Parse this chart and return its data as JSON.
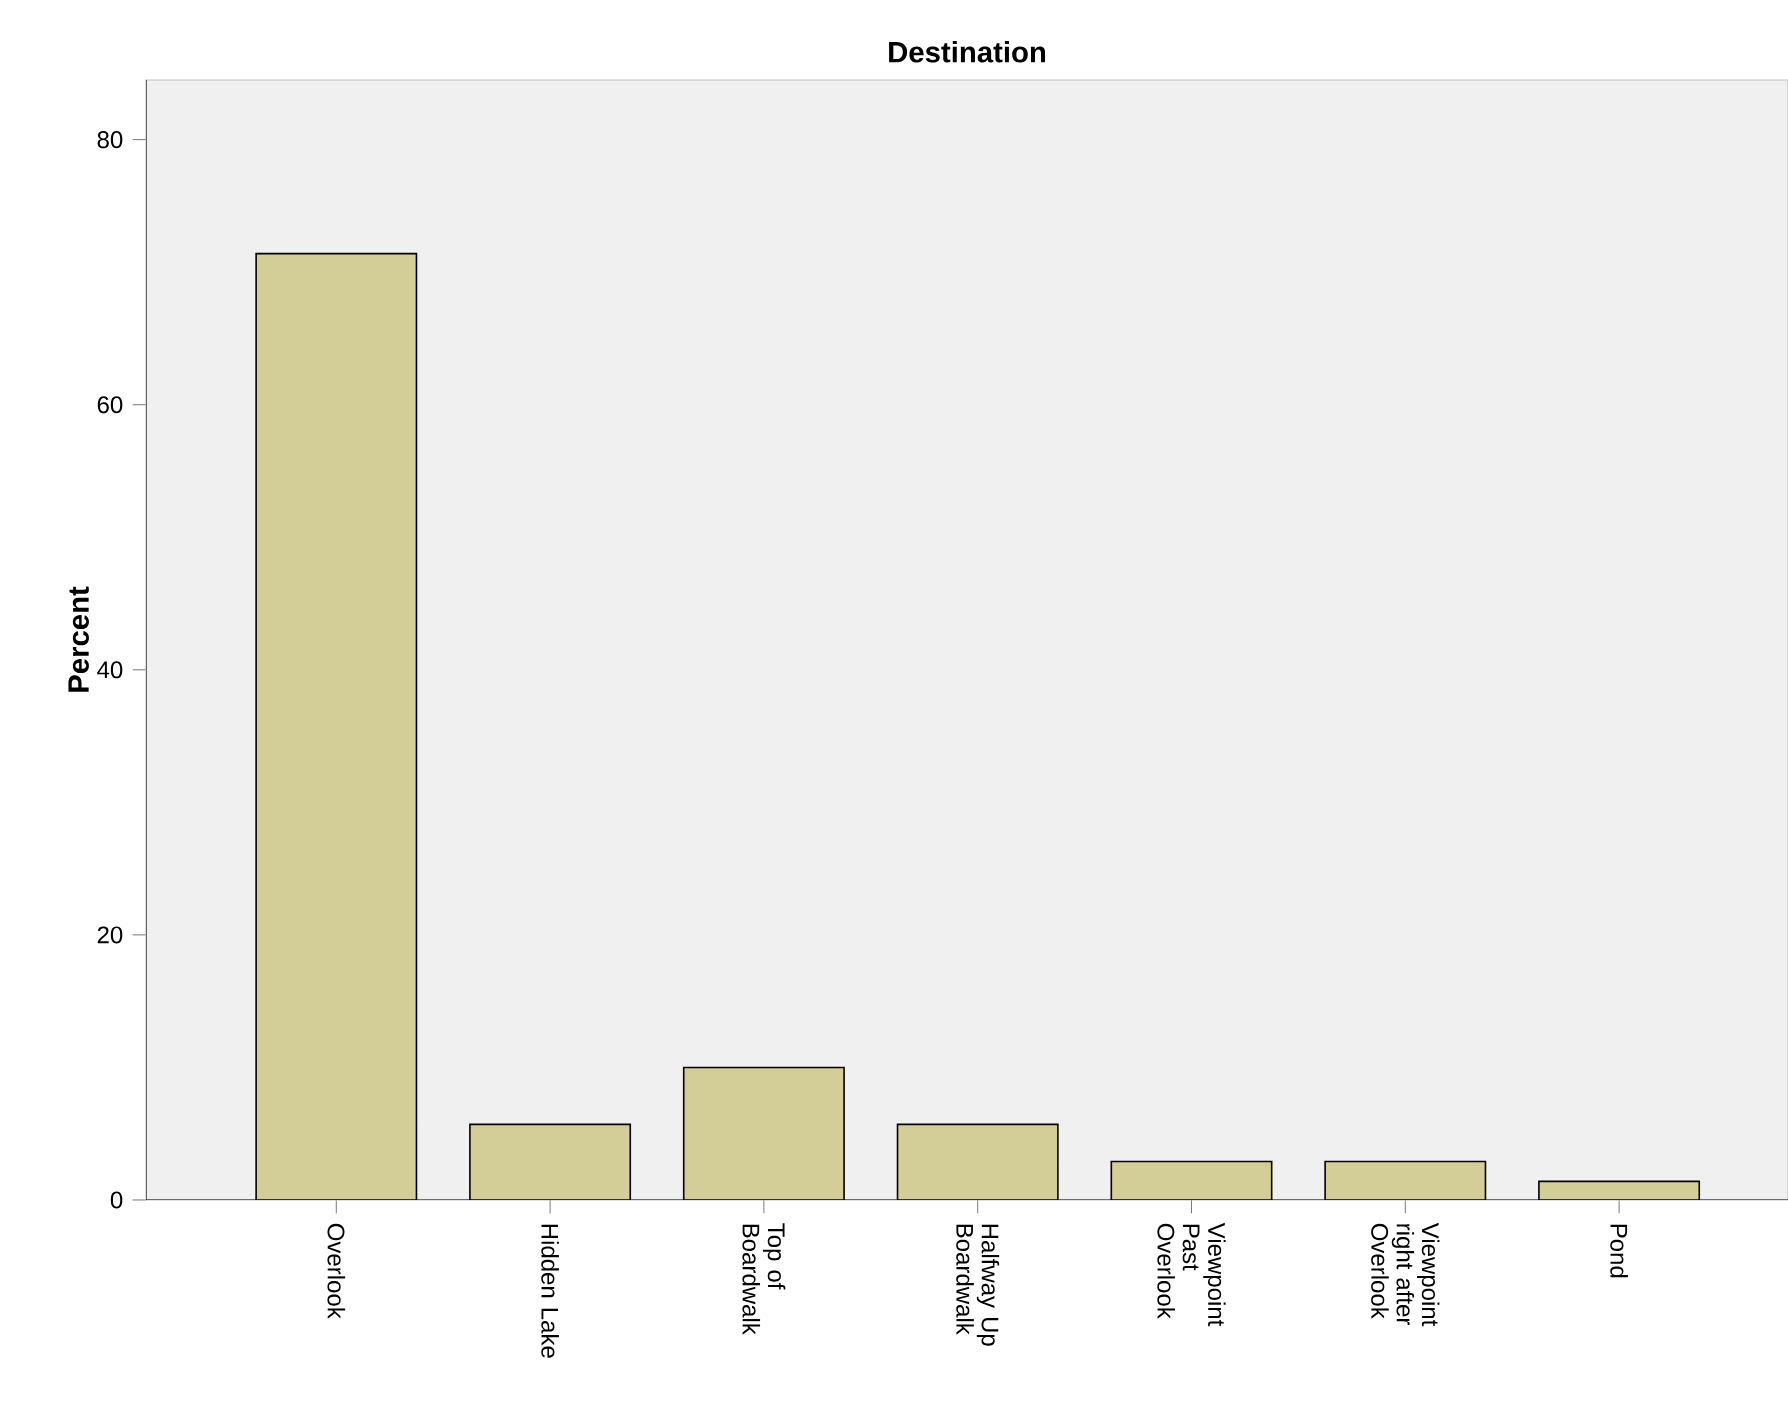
{
  "chart_data": {
    "type": "bar",
    "title": "Destination",
    "ylabel": "Percent",
    "categories": [
      "Overlook",
      "Hidden Lake",
      "Top of Boardwalk",
      "Halfway Up Boardwalk",
      "Viewpoint Past Overlook",
      "Viewpoint right after Overlook",
      "Pond"
    ],
    "values": [
      71.4,
      5.7,
      10.0,
      5.7,
      2.9,
      2.9,
      1.4
    ],
    "color": "#d3ce97",
    "ylim": [
      0,
      84.5
    ],
    "yticks": [
      0,
      20,
      40,
      60,
      80
    ],
    "grid": false
  }
}
